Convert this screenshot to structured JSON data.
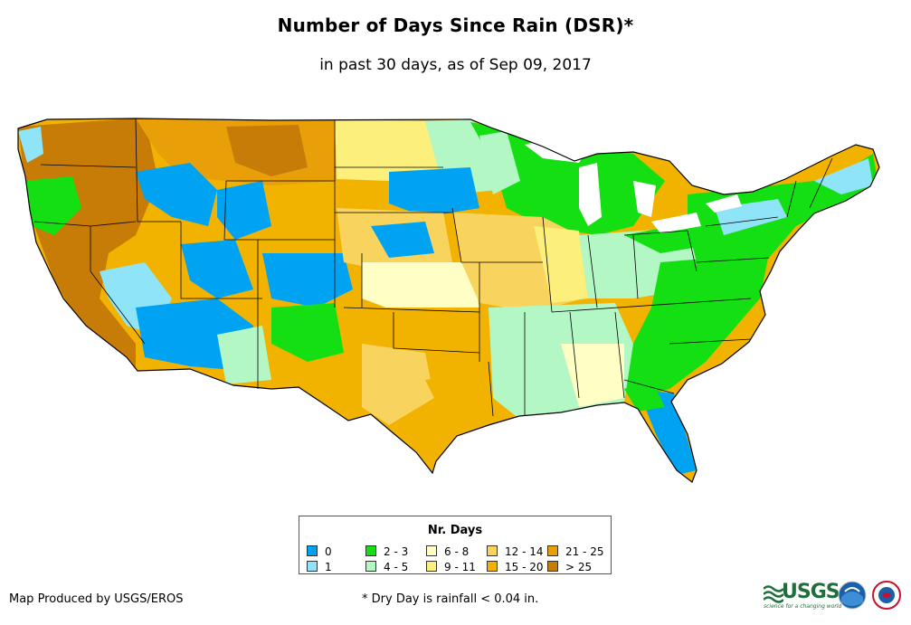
{
  "header": {
    "title": "Number of Days Since Rain (DSR)*",
    "subtitle": "in past 30 days, as of Sep 09, 2017"
  },
  "legend": {
    "title": "Nr. Days",
    "items": [
      {
        "label": "0",
        "color": "#00a2f2"
      },
      {
        "label": "1",
        "color": "#8fe4f7"
      },
      {
        "label": "2 - 3",
        "color": "#13df13"
      },
      {
        "label": "4 - 5",
        "color": "#b3f7c4"
      },
      {
        "label": "6 - 8",
        "color": "#ffffc5"
      },
      {
        "label": "9 - 11",
        "color": "#fcef7c"
      },
      {
        "label": "12 - 14",
        "color": "#f8d45e"
      },
      {
        "label": "15 - 20",
        "color": "#f2b300"
      },
      {
        "label": "21 - 25",
        "color": "#e99f07"
      },
      {
        "label": "> 25",
        "color": "#c67c07"
      }
    ]
  },
  "footer": {
    "credit": "Map Produced by USGS/EROS",
    "footnote": "* Dry Day is rainfall < 0.04 in.",
    "logo_usgs": "USGS",
    "logo_usgs_tagline": "science for a changing world"
  }
}
